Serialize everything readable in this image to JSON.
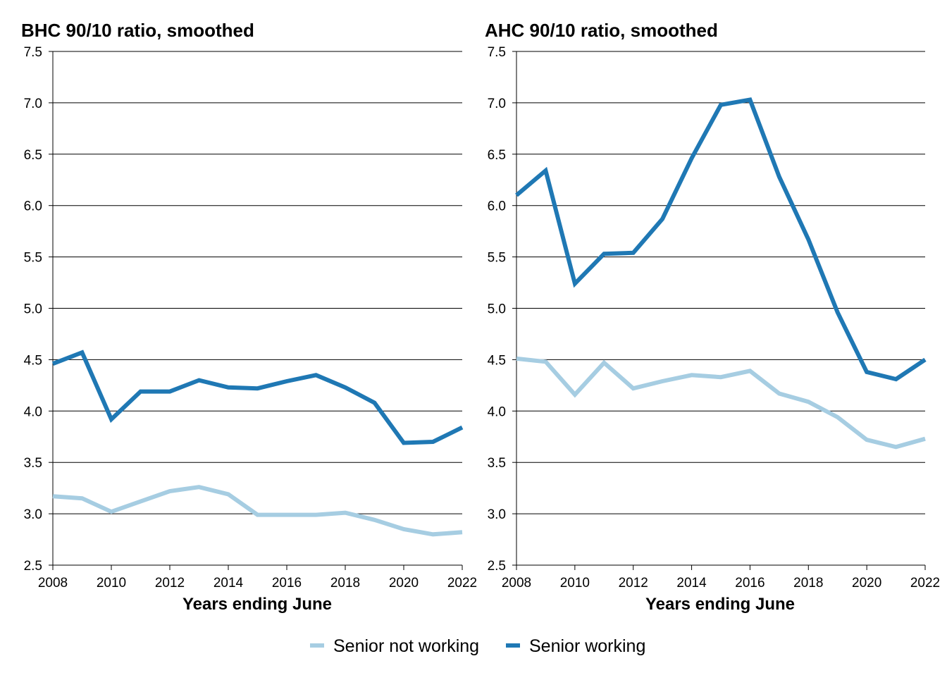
{
  "chart_data": [
    {
      "type": "line",
      "title": "BHC 90/10 ratio, smoothed",
      "xlabel": "Years ending June",
      "ylabel": "",
      "x": [
        2008,
        2009,
        2010,
        2011,
        2012,
        2013,
        2014,
        2015,
        2016,
        2017,
        2018,
        2019,
        2020,
        2021,
        2022
      ],
      "xticks": [
        "2008",
        "2010",
        "2012",
        "2014",
        "2016",
        "2018",
        "2020",
        "2022"
      ],
      "yticks": [
        "2.5",
        "3.0",
        "3.5",
        "4.0",
        "4.5",
        "5.0",
        "5.5",
        "6.0",
        "6.5",
        "7.0",
        "7.5"
      ],
      "ylim": [
        2.5,
        7.5
      ],
      "xlim": [
        2008,
        2022
      ],
      "grid": "horizontal",
      "series": [
        {
          "name": "Senior not working",
          "color": "#a6cde2",
          "values": [
            3.17,
            3.15,
            3.02,
            3.12,
            3.22,
            3.26,
            3.19,
            2.99,
            2.99,
            2.99,
            3.01,
            2.94,
            2.85,
            2.8,
            2.82
          ]
        },
        {
          "name": "Senior working",
          "color": "#1f78b4",
          "values": [
            4.46,
            4.57,
            3.92,
            4.19,
            4.19,
            4.3,
            4.23,
            4.22,
            4.29,
            4.35,
            4.23,
            4.08,
            3.69,
            3.7,
            3.84
          ]
        }
      ]
    },
    {
      "type": "line",
      "title": "AHC 90/10 ratio, smoothed",
      "xlabel": "Years ending June",
      "ylabel": "",
      "x": [
        2008,
        2009,
        2010,
        2011,
        2012,
        2013,
        2014,
        2015,
        2016,
        2017,
        2018,
        2019,
        2020,
        2021,
        2022
      ],
      "xticks": [
        "2008",
        "2010",
        "2012",
        "2014",
        "2016",
        "2018",
        "2020",
        "2022"
      ],
      "yticks": [
        "2.5",
        "3.0",
        "3.5",
        "4.0",
        "4.5",
        "5.0",
        "5.5",
        "6.0",
        "6.5",
        "7.0",
        "7.5"
      ],
      "ylim": [
        2.5,
        7.5
      ],
      "xlim": [
        2008,
        2022
      ],
      "grid": "horizontal",
      "series": [
        {
          "name": "Senior not working",
          "color": "#a6cde2",
          "values": [
            4.51,
            4.48,
            4.16,
            4.47,
            4.22,
            4.29,
            4.35,
            4.33,
            4.39,
            4.17,
            4.09,
            3.94,
            3.72,
            3.65,
            3.73
          ]
        },
        {
          "name": "Senior working",
          "color": "#1f78b4",
          "values": [
            6.1,
            6.34,
            5.24,
            5.53,
            5.54,
            5.87,
            6.46,
            6.98,
            7.03,
            6.28,
            5.67,
            4.96,
            4.38,
            4.31,
            4.5
          ]
        }
      ]
    }
  ],
  "legend": {
    "position": "bottom-center",
    "items": [
      {
        "label": "Senior not working",
        "color": "#a6cde2"
      },
      {
        "label": "Senior working",
        "color": "#1f78b4"
      }
    ]
  }
}
